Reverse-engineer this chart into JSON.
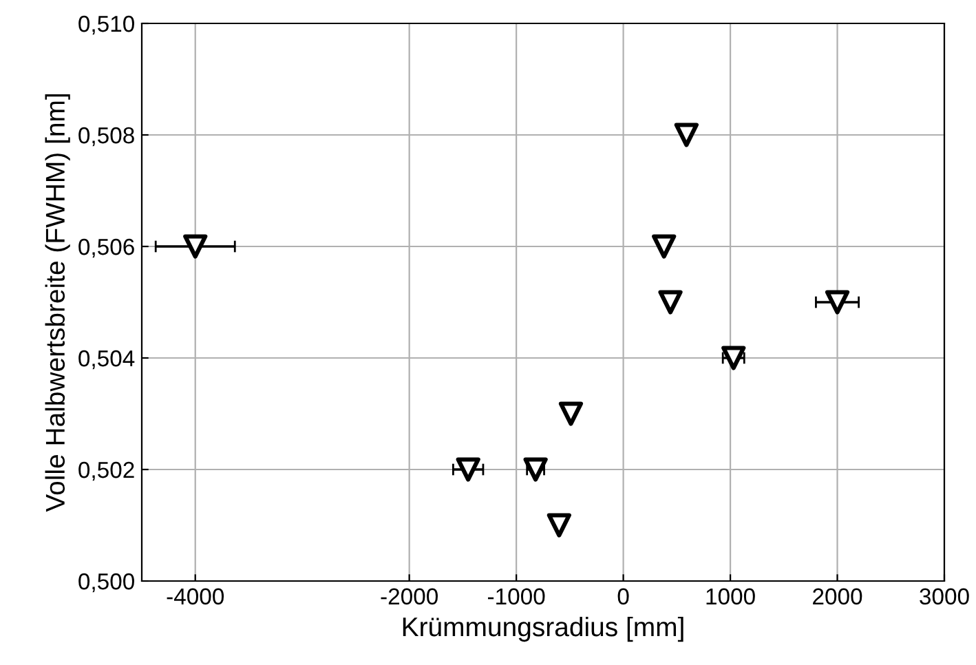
{
  "chart_data": {
    "type": "scatter",
    "xlabel": "Krümmungsradius [mm]",
    "ylabel": "Volle Halbwertsbreite (FWHM) [nm]",
    "x": [
      -4000,
      -1450,
      -820,
      -600,
      -490,
      380,
      440,
      590,
      1030,
      2000
    ],
    "values": [
      0.506,
      0.502,
      0.502,
      0.501,
      0.503,
      0.506,
      0.505,
      0.508,
      0.504,
      0.505
    ],
    "xerrors": [
      370,
      140,
      80,
      null,
      null,
      null,
      null,
      null,
      100,
      200
    ],
    "color": "#000000",
    "marker": "triangle",
    "grid": true,
    "xlim": [
      -4500,
      3000
    ],
    "xticks": [
      -4000,
      -2000,
      -1000,
      0,
      1000,
      2000,
      3000
    ],
    "ylim": [
      0.5,
      0.51
    ],
    "yticks": [
      {
        "value": 0.5,
        "label": "0,500"
      },
      {
        "value": 0.502,
        "label": "0,502"
      },
      {
        "value": 0.504,
        "label": "0,504"
      },
      {
        "value": 0.506,
        "label": "0,506"
      },
      {
        "value": 0.508,
        "label": "0,508"
      },
      {
        "value": 0.51,
        "label": "0,510"
      }
    ]
  }
}
